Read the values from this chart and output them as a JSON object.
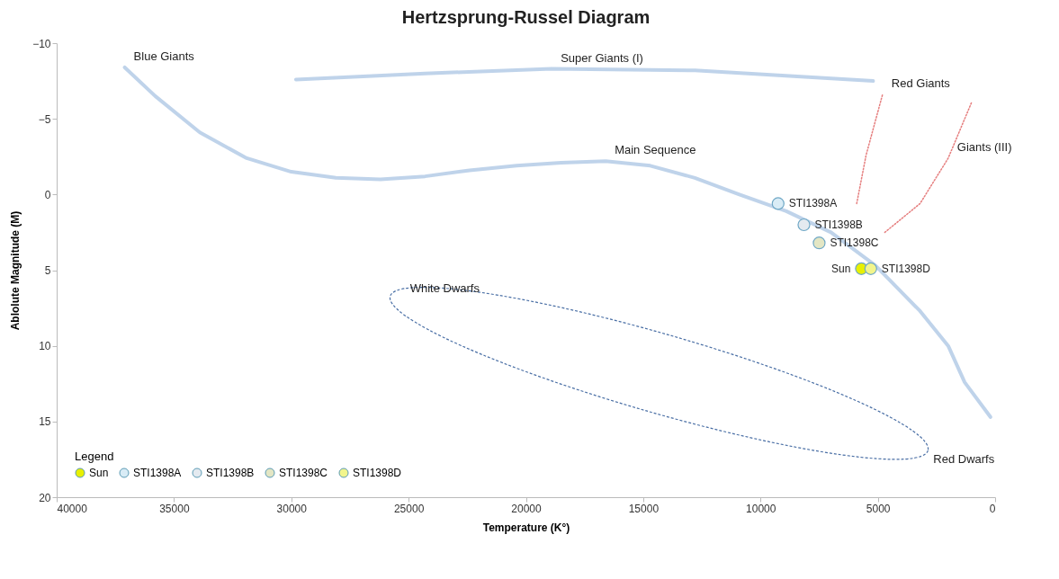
{
  "chart_data": {
    "type": "scatter",
    "title": "Hertzsprung-Russel Diagram",
    "xlabel": "Temperature (K°)",
    "ylabel": "Ablolute Magnitude (M)",
    "legend_title": "Legend",
    "legend": "bottom left",
    "grid": false,
    "marker": "circle",
    "xlim": [
      40000,
      0
    ],
    "xticks": [
      40000,
      35000,
      30000,
      25000,
      20000,
      15000,
      10000,
      5000,
      0
    ],
    "ylim": [
      20,
      -10
    ],
    "yticks": [
      -10,
      -5,
      0,
      5,
      10,
      15,
      20
    ],
    "series": [
      {
        "type": "line",
        "color": "#b4cbe6",
        "line_style": "solid",
        "marker": "none",
        "x": [
          37100,
          35800,
          33900,
          31900,
          30000,
          28100,
          26200,
          24300,
          22400,
          20400,
          18500,
          16600,
          14700,
          12800,
          10900,
          8900,
          7000,
          5100,
          3200,
          2000,
          1300,
          200
        ],
        "values": [
          -8.4,
          -6.5,
          -4.1,
          -2.4,
          -1.5,
          -1.1,
          -1.0,
          -1.2,
          -1.6,
          -1.9,
          -2.1,
          -2.2,
          -1.9,
          -1.1,
          0.0,
          1.1,
          2.5,
          4.7,
          7.7,
          10.0,
          12.4,
          14.7
        ]
      },
      {
        "type": "line",
        "color": "#b4cbe6",
        "line_style": "solid",
        "marker": "none",
        "x": [
          29800,
          24300,
          18900,
          12800,
          5200
        ],
        "values": [
          -7.6,
          -8.0,
          -8.3,
          -8.2,
          -7.5
        ]
      },
      {
        "type": "line",
        "color": "#e06666",
        "line_style": "dotted",
        "marker": "none",
        "x": [
          5900,
          5500,
          4800
        ],
        "values": [
          0.6,
          -2.6,
          -6.6
        ]
      },
      {
        "type": "line",
        "color": "#e06666",
        "line_style": "dotted",
        "marker": "none",
        "x": [
          4700,
          3200,
          2000,
          1000
        ],
        "values": [
          2.5,
          0.6,
          -2.4,
          -6.1
        ]
      },
      {
        "name": "Sun",
        "color": "#e8f000",
        "x": [
          5700
        ],
        "values": [
          4.9
        ]
      },
      {
        "name": "STI1398A",
        "color": "#d9ecf6",
        "x": [
          9250
        ],
        "values": [
          0.6
        ]
      },
      {
        "name": "STI1398B",
        "color": "#e4eaf0",
        "x": [
          8150
        ],
        "values": [
          2.0
        ]
      },
      {
        "name": "STI1398C",
        "color": "#e3e6c4",
        "x": [
          7500
        ],
        "values": [
          3.2
        ]
      },
      {
        "name": "STI1398D",
        "color": "#f2f58c",
        "x": [
          5300
        ],
        "values": [
          4.9
        ]
      }
    ],
    "annotations": [
      {
        "text": "Blue Giants",
        "x": 37100,
        "y": -8.4
      },
      {
        "text": "Super Giants (I)",
        "x": 18900,
        "y": -8.3
      },
      {
        "text": "Red Giants",
        "x": 4800,
        "y": -6.6
      },
      {
        "text": "Main Sequence",
        "x": 16600,
        "y": -2.2
      },
      {
        "text": "Giants (III)",
        "x": 2000,
        "y": -2.4
      },
      "White Dwarfs",
      "Red Dwarfs"
    ]
  }
}
